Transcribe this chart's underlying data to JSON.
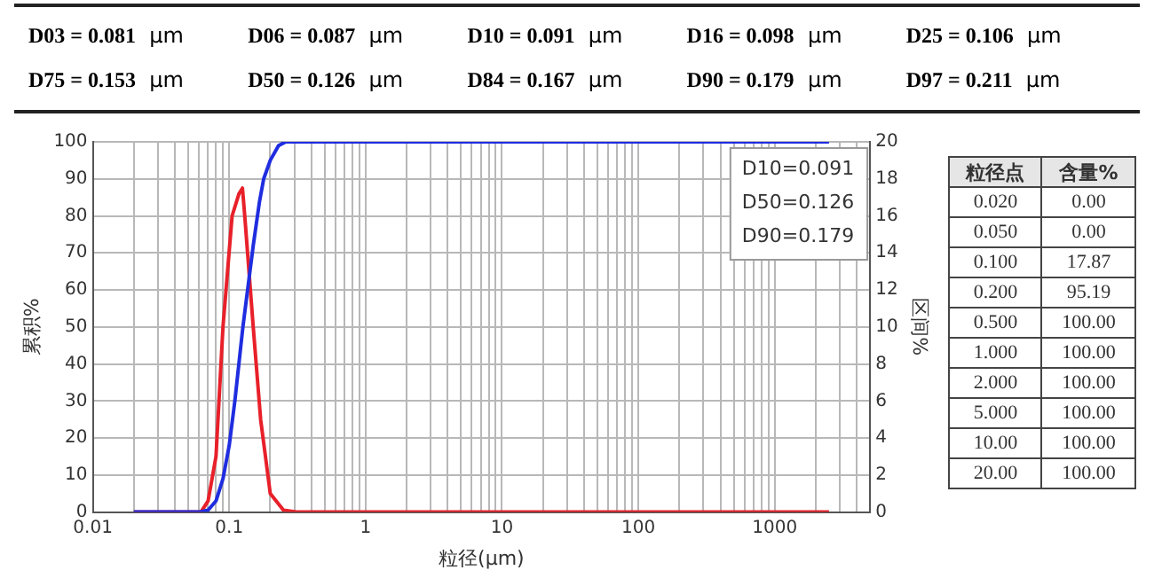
{
  "chart_data": [
    {
      "type": "other",
      "annotations": [
        "D03 = 0.081  μm",
        "D06 = 0.087  μm",
        "D10 = 0.091  μm",
        "D16 = 0.098  μm",
        "D25 = 0.106  μm",
        "D75 = 0.153  μm",
        "D50 = 0.126  μm",
        "D84 = 0.167  μm",
        "D90 = 0.179  μm",
        "D97 = 0.211  μm"
      ]
    },
    {
      "type": "line",
      "xlabel": "粒径(μm)",
      "ylabel": "累积%",
      "y2label": "区间%",
      "log": "x",
      "grid": true,
      "marker": "none",
      "line_style": "solid",
      "xlim": [
        0.01,
        5000
      ],
      "xticks": [
        0.01,
        {
          "value": 0.02,
          "label": null
        },
        {
          "value": 0.03,
          "label": null
        },
        {
          "value": 0.04,
          "label": null
        },
        {
          "value": 0.05,
          "label": null
        },
        {
          "value": 0.06,
          "label": null
        },
        {
          "value": 0.07,
          "label": null
        },
        {
          "value": 0.08,
          "label": null
        },
        {
          "value": 0.09,
          "label": null
        },
        0.1,
        {
          "value": 0.2,
          "label": null
        },
        {
          "value": 0.3,
          "label": null
        },
        {
          "value": 0.4,
          "label": null
        },
        {
          "value": 0.5,
          "label": null
        },
        {
          "value": 0.6,
          "label": null
        },
        {
          "value": 0.7,
          "label": null
        },
        {
          "value": 0.8,
          "label": null
        },
        {
          "value": 0.9,
          "label": null
        },
        1,
        {
          "value": 2,
          "label": null
        },
        {
          "value": 3,
          "label": null
        },
        {
          "value": 4,
          "label": null
        },
        {
          "value": 5,
          "label": null
        },
        {
          "value": 6,
          "label": null
        },
        {
          "value": 7,
          "label": null
        },
        {
          "value": 8,
          "label": null
        },
        {
          "value": 9,
          "label": null
        },
        10,
        {
          "value": 20,
          "label": null
        },
        {
          "value": 30,
          "label": null
        },
        {
          "value": 40,
          "label": null
        },
        {
          "value": 50,
          "label": null
        },
        {
          "value": 60,
          "label": null
        },
        {
          "value": 70,
          "label": null
        },
        {
          "value": 80,
          "label": null
        },
        {
          "value": 90,
          "label": null
        },
        100,
        {
          "value": 200,
          "label": null
        },
        {
          "value": 300,
          "label": null
        },
        {
          "value": 400,
          "label": null
        },
        {
          "value": 500,
          "label": null
        },
        {
          "value": 600,
          "label": null
        },
        {
          "value": 700,
          "label": null
        },
        {
          "value": 800,
          "label": null
        },
        {
          "value": 900,
          "label": null
        },
        1000,
        {
          "value": 2000,
          "label": null
        },
        {
          "value": 3000,
          "label": null
        },
        {
          "value": 4000,
          "label": null
        }
      ],
      "ylim": [
        0,
        100
      ],
      "yticks": [
        0,
        10,
        20,
        30,
        40,
        50,
        60,
        70,
        80,
        90,
        100
      ],
      "y2lim": [
        0,
        20
      ],
      "y2ticks": [
        0,
        2,
        4,
        6,
        8,
        10,
        12,
        14,
        16,
        18,
        20
      ],
      "series": [
        {
          "color": "#1f2de0",
          "x": [
            0.02,
            0.06,
            0.07,
            0.08,
            0.09,
            0.1,
            0.11,
            0.126,
            0.15,
            0.167,
            0.179,
            0.2,
            0.23,
            0.26,
            2500
          ],
          "values": [
            0,
            0,
            0.5,
            3,
            9,
            18,
            30,
            50,
            72,
            84,
            90,
            95,
            99,
            100,
            100
          ]
        },
        {
          "color": "#e8202a",
          "axis": "y2",
          "x": [
            0.02,
            0.062,
            0.07,
            0.08,
            0.09,
            0.105,
            0.118,
            0.125,
            0.13,
            0.15,
            0.17,
            0.2,
            0.25,
            0.31,
            2500
          ],
          "values": [
            0,
            0,
            0.6,
            3,
            10,
            16,
            17.2,
            17.5,
            16,
            10,
            5,
            1,
            0.1,
            0,
            0
          ]
        }
      ],
      "annotations": [
        "D10=0.091",
        "D50=0.126",
        "D90=0.179"
      ]
    },
    {
      "type": "other",
      "xlabel": "粒径点",
      "ylabel": "含量%",
      "categories": [
        "0.020",
        "0.050",
        "0.100",
        "0.200",
        "0.500",
        "1.000",
        "2.000",
        "5.000",
        "10.00",
        "20.00"
      ],
      "values": [
        0,
        0,
        17.87,
        95.19,
        100,
        100,
        100,
        100,
        100,
        100
      ],
      "value_labels": [
        "0.00",
        "0.00",
        "17.87",
        "95.19",
        "100.00",
        "100.00",
        "100.00",
        "100.00",
        "100.00",
        "100.00"
      ]
    }
  ]
}
